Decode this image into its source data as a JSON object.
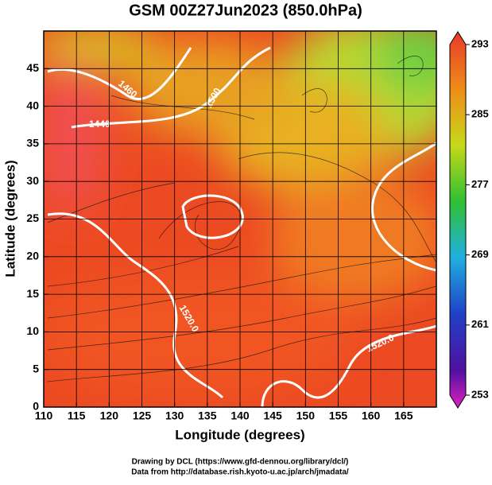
{
  "title": "GSM 00Z27Jun2023 (850.0hPa)",
  "map": {
    "xlabel": "Longitude (degrees)",
    "ylabel": "Latitude  (degrees)",
    "xlim": [
      110,
      170
    ],
    "xticks": [
      110,
      115,
      120,
      125,
      130,
      135,
      140,
      145,
      150,
      155,
      160,
      165
    ],
    "ylim": [
      0,
      50
    ],
    "yticks": [
      0,
      5,
      10,
      15,
      20,
      25,
      30,
      35,
      40,
      45
    ],
    "grid": true,
    "contour_labels": [
      "1460",
      "1440",
      "1500",
      "1520.0",
      "1520.0"
    ]
  },
  "colorbar": {
    "lim": [
      253,
      293
    ],
    "ticks": [
      253,
      261,
      269,
      277,
      285,
      293
    ]
  },
  "credits": [
    "Drawing by DCL (https://www.gfd-dennou.org/library/dcl/)",
    "Data from http://database.rish.kyoto-u.ac.jp/arch/jmadata/"
  ]
}
